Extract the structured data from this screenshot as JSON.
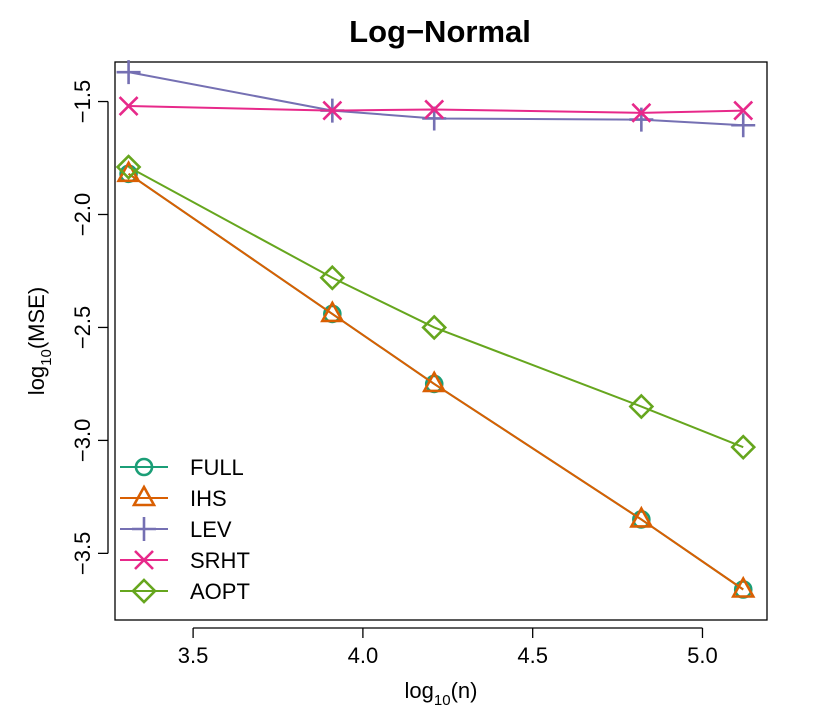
{
  "chart_data": {
    "type": "line",
    "title": "Log−Normal",
    "xlabel": {
      "base": "log",
      "sub": "10",
      "arg": "(n)"
    },
    "ylabel": {
      "base": "log",
      "sub": "10",
      "arg": "(MSE)"
    },
    "xlim": [
      3.27,
      5.19
    ],
    "ylim": [
      -3.795,
      -1.325
    ],
    "xticks": [
      3.5,
      4.0,
      4.5,
      5.0
    ],
    "xtick_labels": [
      "3.5",
      "4.0",
      "4.5",
      "5.0"
    ],
    "yticks": [
      -1.5,
      -2.0,
      -2.5,
      -3.0,
      -3.5
    ],
    "ytick_labels": [
      "−1.5",
      "−2.0",
      "−2.5",
      "−3.0",
      "−3.5"
    ],
    "grid": false,
    "legend_position": "bottom-left",
    "x": [
      3.31,
      3.91,
      4.21,
      4.82,
      5.12
    ],
    "series": [
      {
        "name": "FULL",
        "color": "#1b9e77",
        "marker": "circle",
        "values": [
          -1.82,
          -2.44,
          -2.75,
          -3.35,
          -3.66
        ]
      },
      {
        "name": "IHS",
        "color": "#d95f02",
        "marker": "triangle",
        "values": [
          -1.82,
          -2.44,
          -2.75,
          -3.35,
          -3.66
        ]
      },
      {
        "name": "LEV",
        "color": "#7570b3",
        "marker": "plus",
        "values": [
          -1.37,
          -1.54,
          -1.575,
          -1.58,
          -1.605
        ]
      },
      {
        "name": "SRHT",
        "color": "#e7298a",
        "marker": "cross",
        "values": [
          -1.52,
          -1.54,
          -1.535,
          -1.55,
          -1.54
        ]
      },
      {
        "name": "AOPT",
        "color": "#66a61e",
        "marker": "diamond",
        "values": [
          -1.79,
          -2.28,
          -2.5,
          -2.85,
          -3.03
        ]
      }
    ]
  }
}
